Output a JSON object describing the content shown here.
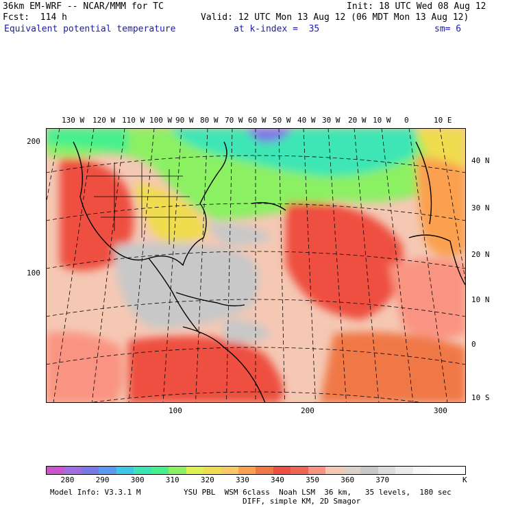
{
  "header": {
    "line1_left": "36km EM-WRF -- NCAR/MMM for TC",
    "line1_right": "Init: 18 UTC Wed 08 Aug 12",
    "line2_left": "Fcst:  114 h",
    "line2_right": "Valid: 12 UTC Mon 13 Aug 12 (06 MDT Mon 13 Aug 12)",
    "field": "Equivalent potential temperature",
    "level": "at k-index =  35",
    "smoothing": "sm= 6"
  },
  "map": {
    "lon_labels": [
      "130 W",
      "120 W",
      "110 W",
      "100 W",
      "90 W",
      "80 W",
      "70 W",
      "60 W",
      "50 W",
      "40 W",
      "30 W",
      "20 W",
      "10 W",
      "0",
      "10 E"
    ],
    "lat_labels": [
      "40 N",
      "30 N",
      "20 N",
      "10 N",
      "0",
      "10 S"
    ],
    "grid_x_labels": [
      "100",
      "200",
      "300"
    ],
    "grid_y_labels": [
      "200",
      "100"
    ]
  },
  "colorbar": {
    "colors": [
      "#cc55cc",
      "#a06ee0",
      "#7878e6",
      "#5a9af0",
      "#3cc8e6",
      "#3ce6b4",
      "#46f08c",
      "#8cf064",
      "#dcf050",
      "#f0dc50",
      "#fac864",
      "#faa050",
      "#f07846",
      "#ee5040",
      "#f06450",
      "#fa9482",
      "#f5c8b4",
      "#dcd2c8",
      "#c8c8c8",
      "#dcdcdc",
      "#ebebeb",
      "#f8f8f8",
      "#ffffff",
      "#ffffff"
    ],
    "labels": [
      "280",
      "290",
      "300",
      "310",
      "320",
      "330",
      "340",
      "350",
      "360",
      "370"
    ],
    "unit": "K"
  },
  "footer": {
    "line1_left": "Model Info: V3.3.1 M",
    "line1_right": "YSU PBL  WSM 6class  Noah LSM  36 km,   35 levels,  180 sec",
    "line2": "DIFF, simple KM, 2D Smagor"
  }
}
